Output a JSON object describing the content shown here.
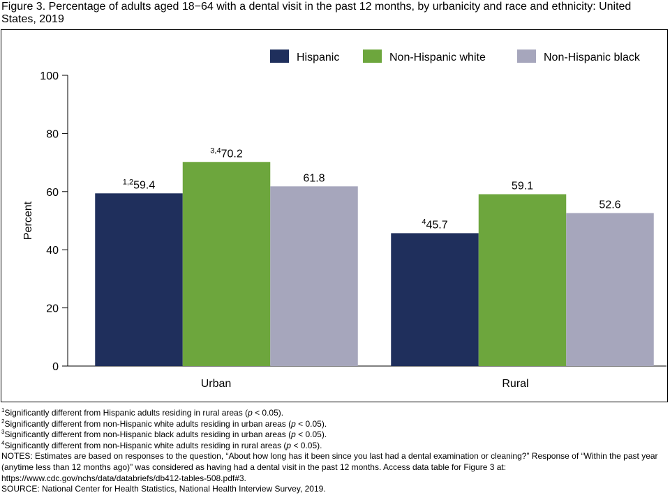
{
  "title": "Figure 3. Percentage of adults aged 18−64 with a dental visit in the past 12 months, by urbanicity and race and ethnicity: United States, 2019",
  "chart_data": {
    "type": "bar",
    "title": "",
    "xlabel": "",
    "ylabel": "Percent",
    "ylim": [
      0,
      100
    ],
    "yticks": [
      0,
      20,
      40,
      60,
      80,
      100
    ],
    "grid": false,
    "legend_position": "top-right",
    "categories": [
      "Urban",
      "Rural"
    ],
    "series": [
      {
        "name": "Hispanic",
        "color": "#1f2f5c",
        "values": [
          59.4,
          45.7
        ],
        "value_labels": [
          "59.4",
          "45.7"
        ],
        "superscripts": [
          "1,2",
          "4"
        ]
      },
      {
        "name": "Non-Hispanic white",
        "color": "#6da63d",
        "values": [
          70.2,
          59.1
        ],
        "value_labels": [
          "70.2",
          "59.1"
        ],
        "superscripts": [
          "3,4",
          ""
        ]
      },
      {
        "name": "Non-Hispanic black",
        "color": "#a6a6bc",
        "values": [
          61.8,
          52.6
        ],
        "value_labels": [
          "61.8",
          "52.6"
        ],
        "superscripts": [
          "",
          ""
        ]
      }
    ]
  },
  "footnotes": [
    {
      "mark": "1",
      "text": "Significantly different from Hispanic adults residing in rural areas (",
      "p": "p",
      "after": " < 0.05)."
    },
    {
      "mark": "2",
      "text": "Significantly different from non-Hispanic white adults residing in urban areas (",
      "p": "p",
      "after": " < 0.05)."
    },
    {
      "mark": "3",
      "text": "Significantly different from non-Hispanic black adults residing in urban areas (",
      "p": "p",
      "after": " < 0.05)."
    },
    {
      "mark": "4",
      "text": "Significantly different from non-Hispanic white adults residing in rural areas (",
      "p": "p",
      "after": " < 0.05)."
    }
  ],
  "notes": "NOTES: Estimates are based on responses to the question, “About how long has it been since you last had a dental examination or cleaning?” Response of “Within the past year (anytime less than 12 months ago)” was considered as having had a dental visit in the past 12 months. Access data table for Figure 3 at: https://www.cdc.gov/nchs/data/databriefs/db412-tables-508.pdf#3.",
  "source": "SOURCE: National Center for Health Statistics, National Health Interview Survey, 2019."
}
